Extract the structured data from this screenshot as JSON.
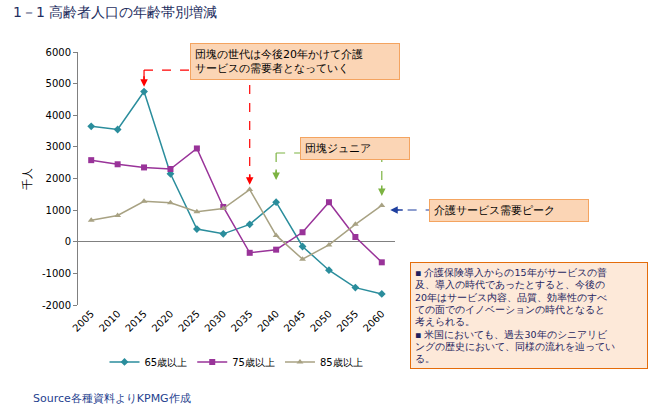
{
  "chart_data": {
    "type": "line",
    "title": "1－1 高齢者人口の年齢帯別増減",
    "y_label": "千人",
    "categories": [
      "2005",
      "2010",
      "2015",
      "2020",
      "2025",
      "2030",
      "2035",
      "2040",
      "2045",
      "2050",
      "2055",
      "2060"
    ],
    "series": [
      {
        "name": "65歳以上",
        "color": "#2a8d9c",
        "marker": "diamond",
        "line_style": "solid",
        "values": [
          3650,
          3550,
          4750,
          2150,
          400,
          250,
          550,
          1250,
          -150,
          -900,
          -1450,
          -1650
        ]
      },
      {
        "name": "75歳以上",
        "color": "#993399",
        "marker": "square",
        "line_style": "solid",
        "values": [
          2580,
          2450,
          2350,
          2300,
          2950,
          1100,
          -350,
          -250,
          300,
          1250,
          150,
          -650
        ]
      },
      {
        "name": "85歳以上",
        "color": "#a8a283",
        "marker": "triangle",
        "line_style": "solid",
        "values": [
          680,
          830,
          1280,
          1230,
          950,
          1050,
          1650,
          200,
          -550,
          -100,
          550,
          1150
        ]
      }
    ],
    "ylim": [
      -2000,
      6000
    ],
    "yticks": [
      -2000,
      -1000,
      0,
      1000,
      2000,
      3000,
      4000,
      5000,
      6000
    ],
    "grid": false,
    "legend": "bottom",
    "annotations": [
      "団塊の世代は今後20年かけて介護\nサービスの需要者となっていく",
      "団塊ジュニア",
      "介護サービス需要ピーク"
    ],
    "note": "▪ 介護保険導入からの15年がサービスの普\n及、導入の時代であったとすると、今後の\n20年はサービス内容、品質、効率性のすべ\nての面でのイノベーションの時代となると\n考えられる。\n▪ 米国においても、過去30年のシニアリビ\nングの歴史において、同様の流れを辿ってい\nる。",
    "source": "Source各種資料よりKPMG作成"
  }
}
